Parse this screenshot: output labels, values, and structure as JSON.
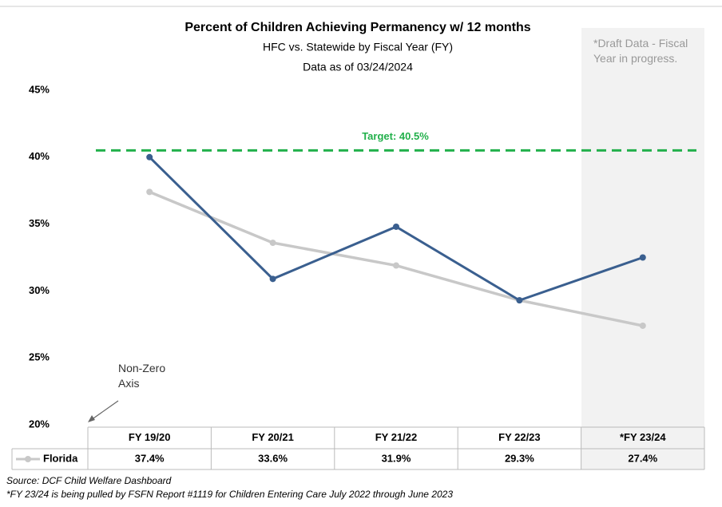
{
  "chart_data": {
    "type": "line",
    "title": "Percent of Children Achieving Permanency w/ 12 months",
    "subtitle": [
      "HFC vs. Statewide by Fiscal Year (FY)",
      "Data as of 03/24/2024"
    ],
    "categories": [
      "FY 19/20",
      "FY 20/21",
      "FY 21/22",
      "FY 22/23",
      "*FY 23/24"
    ],
    "series": [
      {
        "color": "#3a5f8f",
        "values": [
          40.0,
          30.9,
          34.8,
          29.3,
          32.5
        ]
      },
      {
        "name": "Florida",
        "color": "#c8c8c8",
        "values": [
          37.4,
          33.6,
          31.9,
          29.3,
          27.4
        ],
        "value_labels": [
          "37.4%",
          "33.6%",
          "31.9%",
          "29.3%",
          "27.4%"
        ]
      }
    ],
    "ylim": [
      20,
      45
    ],
    "yticks": [
      {
        "value": 20,
        "label": "20%"
      },
      {
        "value": 25,
        "label": "25%"
      },
      {
        "value": 30,
        "label": "30%"
      },
      {
        "value": 35,
        "label": "35%"
      },
      {
        "value": 40,
        "label": "40%"
      },
      {
        "value": 45,
        "label": "45%"
      }
    ],
    "target": {
      "value": 40.5,
      "label": "Target: 40.5%",
      "color": "#22b04b"
    },
    "annotations": [
      "*Draft Data - Fiscal Year in progress.",
      "Non-Zero Axis"
    ],
    "footnotes": [
      "Source: DCF Child Welfare Dashboard",
      "*FY 23/24 is being pulled by FSFN Report #1119 for Children Entering Care July 2022 through June 2023"
    ]
  }
}
